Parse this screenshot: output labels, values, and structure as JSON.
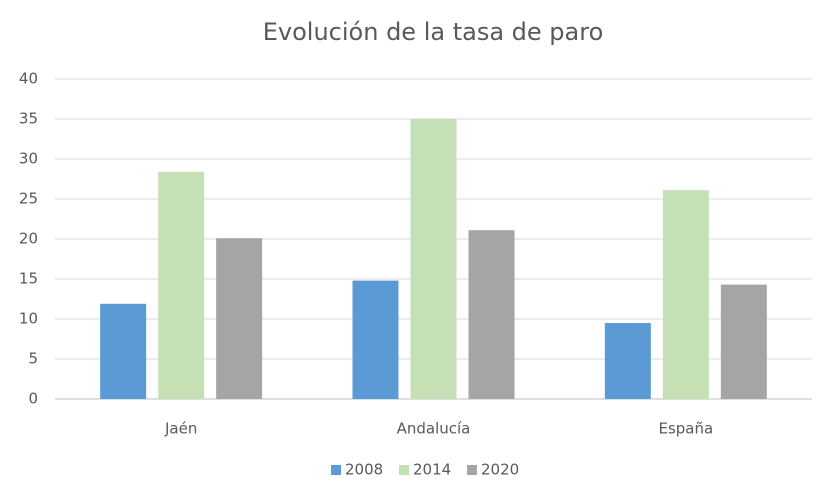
{
  "chart_data": {
    "type": "bar",
    "title": "Evolución de la tasa de paro",
    "categories": [
      "Jaén",
      "Andalucía",
      "España"
    ],
    "series": [
      {
        "name": "2008",
        "color": "#5b9bd5",
        "values": [
          11.9,
          14.8,
          9.5
        ]
      },
      {
        "name": "2014",
        "color": "#c5e0b4",
        "values": [
          28.4,
          35.0,
          26.1
        ]
      },
      {
        "name": "2020",
        "color": "#a5a5a5",
        "values": [
          20.1,
          21.1,
          14.3
        ]
      }
    ],
    "ylim": [
      0,
      40
    ],
    "yticks": [
      0,
      5,
      10,
      15,
      20,
      25,
      30,
      35,
      40
    ],
    "grid": true,
    "legend": "bottom"
  }
}
